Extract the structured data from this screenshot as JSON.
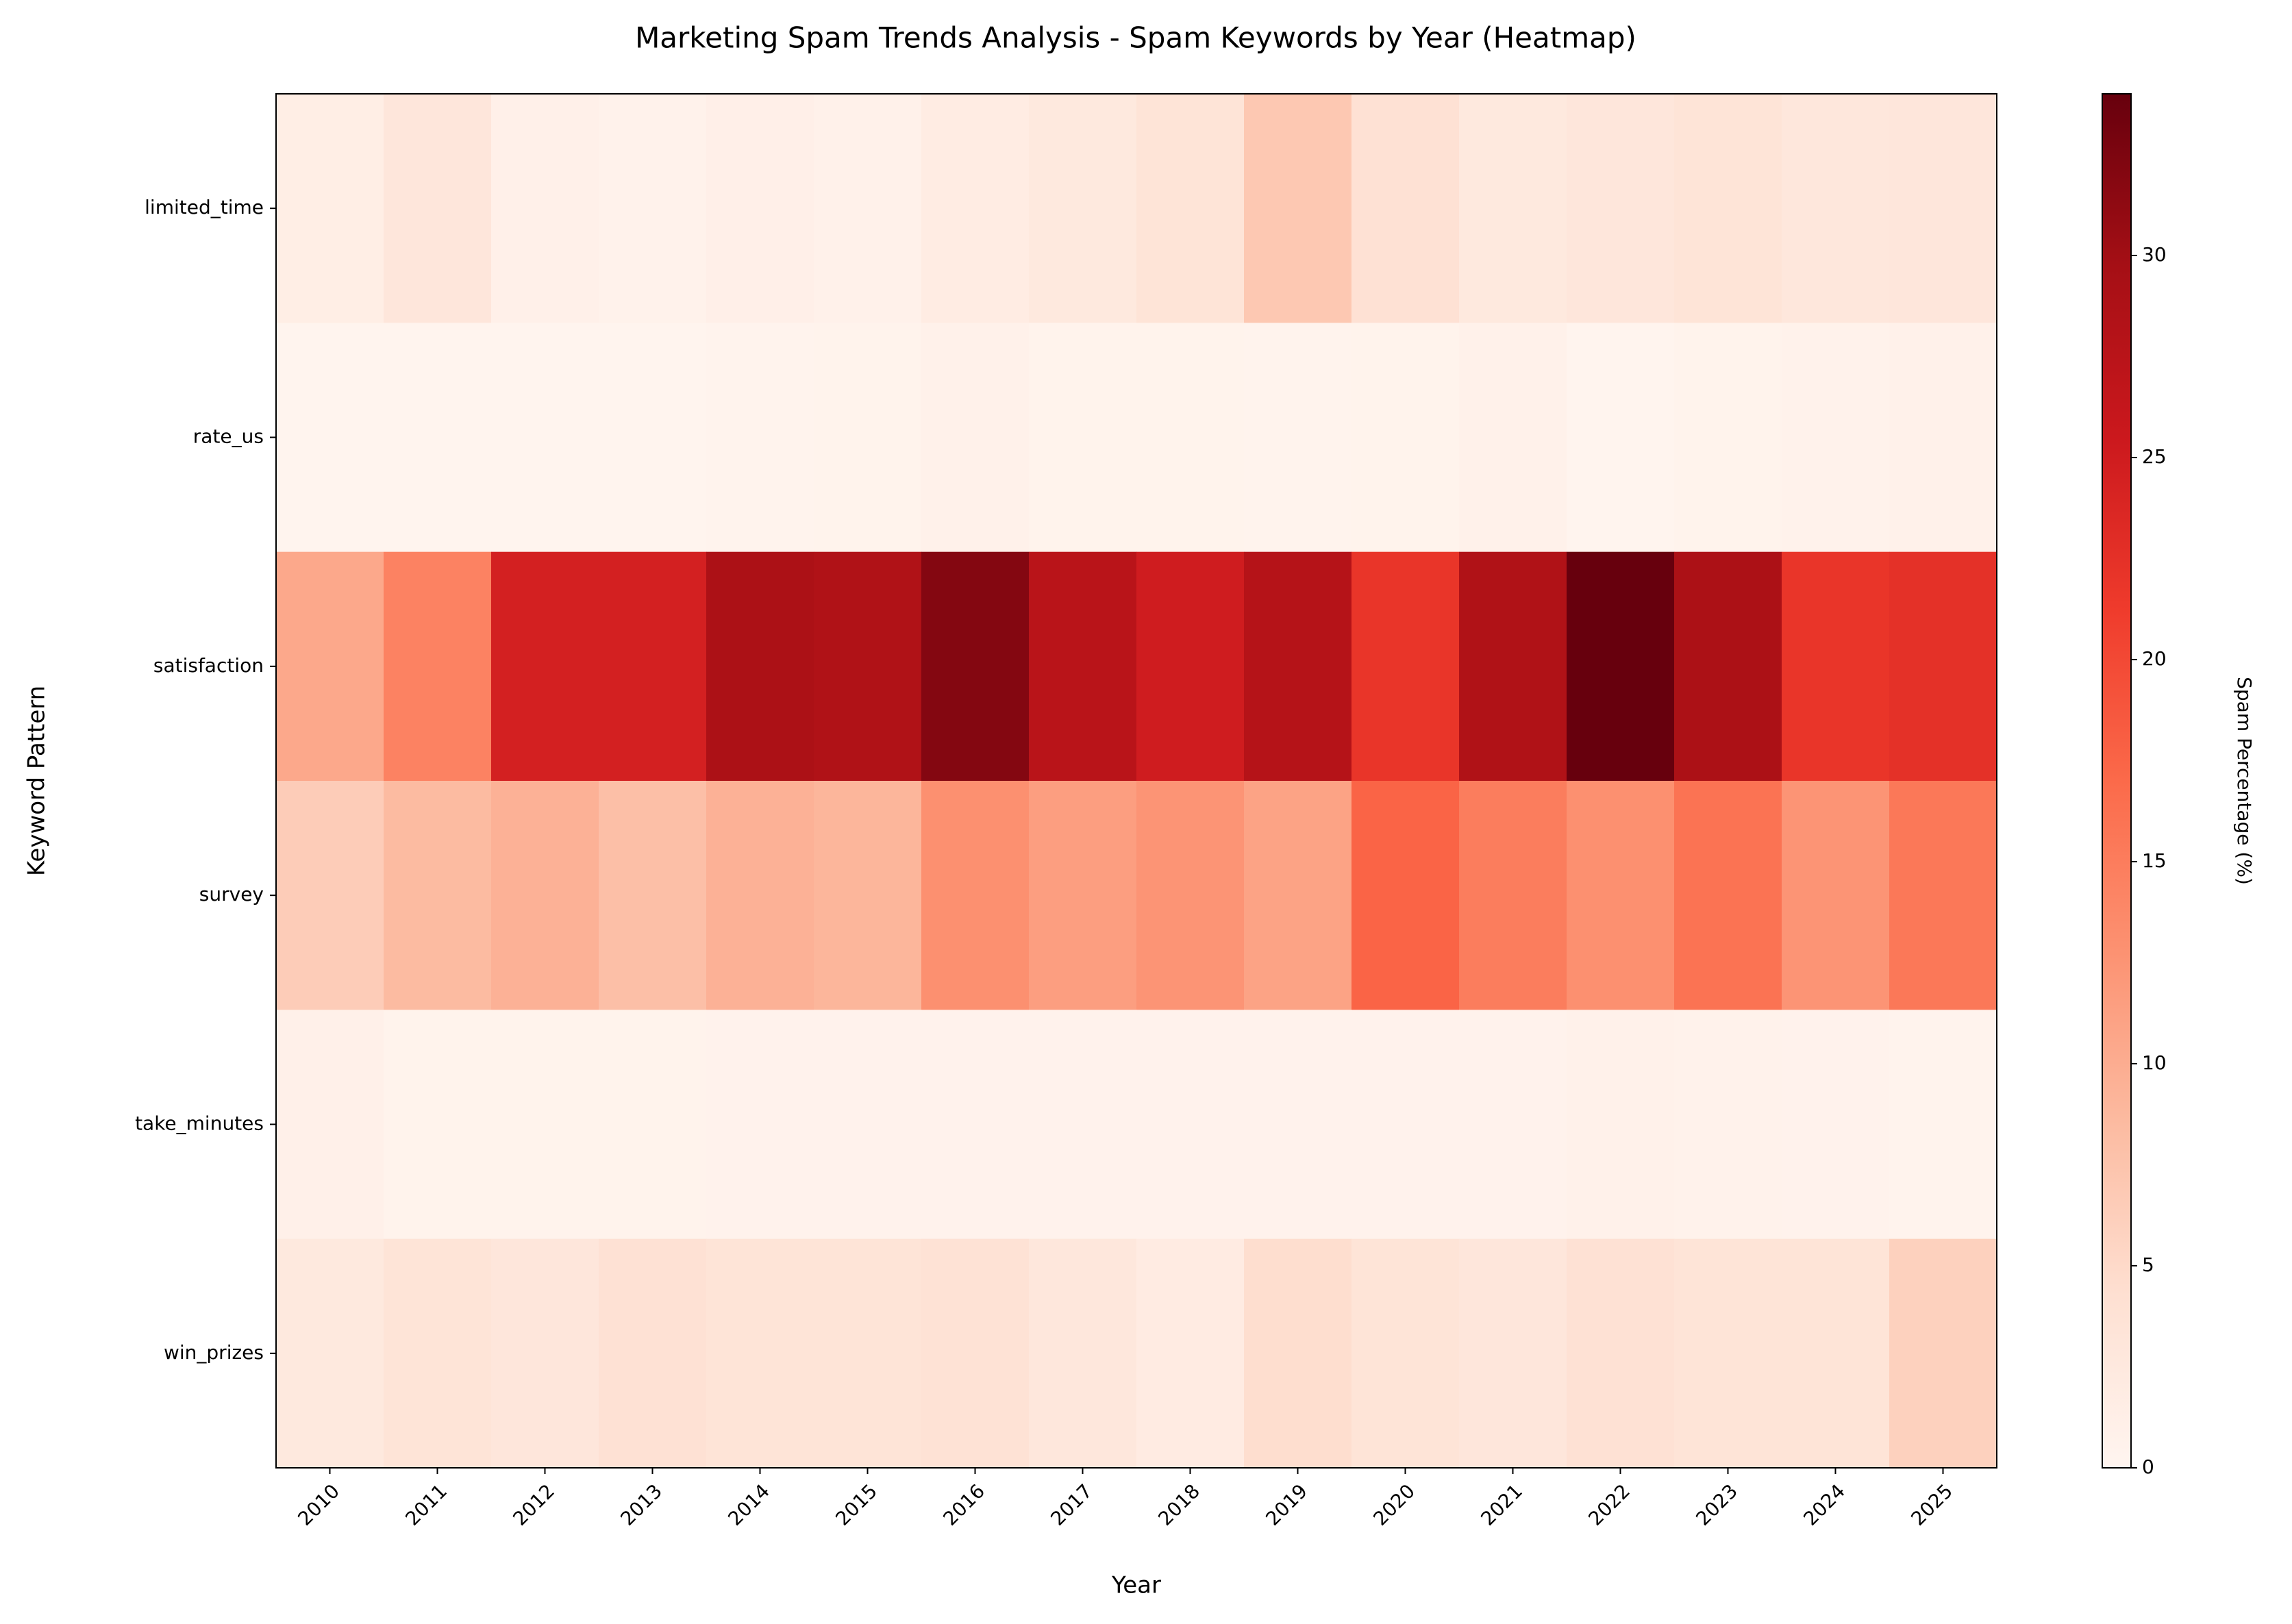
{
  "chart_data": {
    "type": "heatmap",
    "title": "Marketing Spam Trends Analysis - Spam Keywords by Year (Heatmap)",
    "x_label": "Year",
    "y_label": "Keyword Pattern",
    "colorbar_label": "Spam Percentage (%)",
    "colormap": "Reds",
    "x": [
      "2010",
      "2011",
      "2012",
      "2013",
      "2014",
      "2015",
      "2016",
      "2017",
      "2018",
      "2019",
      "2020",
      "2021",
      "2022",
      "2023",
      "2024",
      "2025"
    ],
    "y": [
      "limited_time",
      "rate_us",
      "satisfaction",
      "survey",
      "take_minutes",
      "win_prizes"
    ],
    "values": [
      [
        1.5,
        3,
        1,
        0.7,
        1.2,
        0.8,
        1.8,
        2.5,
        3.5,
        7,
        4,
        2.5,
        3,
        3.5,
        2.8,
        3
      ],
      [
        0.3,
        0.3,
        0.3,
        0.3,
        0.4,
        0.5,
        0.8,
        0.5,
        0.5,
        0.4,
        0.5,
        0.8,
        0.3,
        0.5,
        0.7,
        0.8
      ],
      [
        10.5,
        14.5,
        24.5,
        24.5,
        29,
        28.5,
        32,
        27.5,
        25,
        28,
        22,
        28.5,
        34,
        29,
        22,
        22.5
      ],
      [
        6.5,
        8.5,
        9.5,
        8,
        9.5,
        9,
        13,
        11.5,
        12.5,
        11,
        17.5,
        15,
        13,
        16,
        12.5,
        15.5
      ],
      [
        1,
        0.5,
        0.5,
        0.5,
        0.6,
        0.6,
        0.6,
        0.6,
        0.6,
        0.6,
        0.6,
        0.6,
        0.8,
        0.7,
        0.6,
        0.4
      ],
      [
        2.5,
        3.5,
        3,
        4,
        3.5,
        3.5,
        3.8,
        2.8,
        2,
        4.5,
        3.5,
        3,
        4,
        3.5,
        3.5,
        6
      ]
    ],
    "clim": [
      0,
      34
    ],
    "cticks": [
      0,
      5,
      10,
      15,
      20,
      25,
      30
    ]
  }
}
